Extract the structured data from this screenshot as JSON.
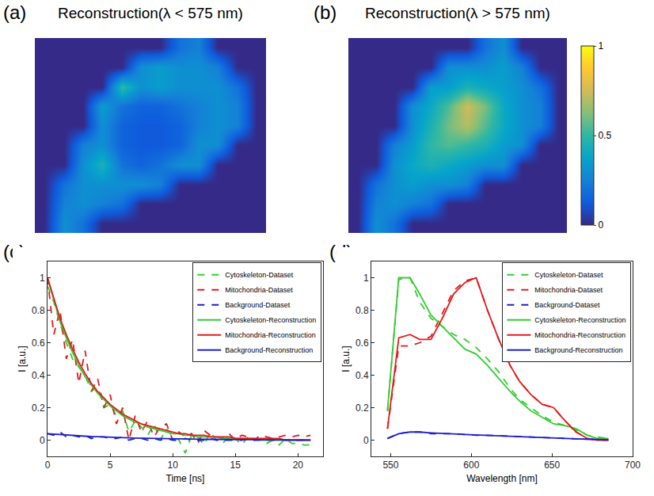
{
  "chart_data": [
    {
      "type": "heatmap",
      "panel": "(a)",
      "title": "Reconstruction(λ < 575 nm)",
      "tick_labels": false,
      "color_range": [
        0,
        1
      ],
      "z": [
        [
          0,
          0,
          0,
          0,
          0,
          0,
          0,
          0.2,
          0.25,
          0,
          0,
          0
        ],
        [
          0,
          0,
          0,
          0,
          0,
          0.3,
          0.35,
          0.3,
          0.3,
          0.25,
          0,
          0
        ],
        [
          0,
          0,
          0,
          0,
          0.5,
          0.3,
          0.35,
          0.3,
          0.3,
          0.3,
          0.2,
          0
        ],
        [
          0,
          0,
          0,
          0.35,
          0.2,
          0.15,
          0.15,
          0.2,
          0.25,
          0.3,
          0.25,
          0
        ],
        [
          0,
          0,
          0,
          0.3,
          0.15,
          0.12,
          0.12,
          0.15,
          0.25,
          0.3,
          0.25,
          0
        ],
        [
          0,
          0,
          0.25,
          0.3,
          0.15,
          0.12,
          0.12,
          0.15,
          0.3,
          0.3,
          0,
          0
        ],
        [
          0,
          0,
          0.3,
          0.45,
          0.2,
          0.15,
          0.2,
          0.3,
          0.3,
          0,
          0,
          0
        ],
        [
          0,
          0.2,
          0.3,
          0.3,
          0.3,
          0.3,
          0.25,
          0,
          0,
          0,
          0,
          0
        ],
        [
          0,
          0.25,
          0.3,
          0.25,
          0.2,
          0,
          0,
          0,
          0,
          0,
          0,
          0
        ],
        [
          0,
          0.3,
          0.2,
          0,
          0,
          0,
          0,
          0,
          0,
          0,
          0,
          0
        ]
      ]
    },
    {
      "type": "heatmap",
      "panel": "(b)",
      "title": "Reconstruction(λ > 575 nm)",
      "tick_labels": false,
      "colorbar": {
        "range": [
          0,
          1
        ],
        "ticks": [
          0,
          0.5,
          1
        ]
      },
      "z": [
        [
          0,
          0,
          0,
          0,
          0,
          0,
          0,
          0.2,
          0.3,
          0,
          0,
          0
        ],
        [
          0,
          0,
          0,
          0,
          0,
          0.3,
          0.3,
          0.3,
          0.35,
          0.25,
          0,
          0
        ],
        [
          0,
          0,
          0,
          0,
          0.35,
          0.35,
          0.45,
          0.4,
          0.35,
          0.3,
          0.2,
          0
        ],
        [
          0,
          0,
          0,
          0.3,
          0.4,
          0.55,
          0.75,
          0.6,
          0.4,
          0.3,
          0.25,
          0
        ],
        [
          0,
          0,
          0,
          0.3,
          0.45,
          0.6,
          0.7,
          0.55,
          0.4,
          0.3,
          0.25,
          0
        ],
        [
          0,
          0,
          0.25,
          0.35,
          0.5,
          0.55,
          0.5,
          0.45,
          0.35,
          0.3,
          0,
          0
        ],
        [
          0,
          0,
          0.3,
          0.4,
          0.45,
          0.4,
          0.35,
          0.3,
          0.3,
          0,
          0,
          0
        ],
        [
          0,
          0.2,
          0.3,
          0.35,
          0.3,
          0.3,
          0.25,
          0,
          0,
          0,
          0,
          0
        ],
        [
          0,
          0.25,
          0.3,
          0.25,
          0.2,
          0,
          0,
          0,
          0,
          0,
          0,
          0
        ],
        [
          0,
          0.3,
          0.2,
          0,
          0,
          0,
          0,
          0,
          0,
          0,
          0,
          0
        ]
      ]
    },
    {
      "type": "line",
      "panel": "(c)",
      "x_label": "Time [ns]",
      "y_label": "I [a.u.]",
      "grid": false,
      "legend": "top right",
      "xlim": [
        0,
        22
      ],
      "xticks": [
        0,
        5,
        10,
        15,
        20
      ],
      "ylim": [
        -0.1,
        1.1
      ],
      "yticks": [
        0,
        0.2,
        0.4,
        0.6,
        0.8,
        1
      ],
      "x": [
        0,
        0.5,
        1,
        1.5,
        2,
        2.5,
        3,
        3.5,
        4,
        4.5,
        5,
        5.5,
        6,
        6.5,
        7,
        7.5,
        8,
        8.5,
        9,
        9.5,
        10,
        10.5,
        11,
        11.5,
        12,
        12.5,
        13,
        13.5,
        14,
        14.5,
        15,
        15.5,
        16,
        16.5,
        17,
        17.5,
        18,
        18.5,
        19,
        19.5,
        20,
        20.5,
        21
      ],
      "series": [
        {
          "name": "Cytoskeleton-Dataset",
          "color": "#33cc33",
          "line_style": "dash",
          "values": [
            0.95,
            0.85,
            0.72,
            0.6,
            0.5,
            0.45,
            0.4,
            0.3,
            0.33,
            0.2,
            0.22,
            0.15,
            0.18,
            0.05,
            0.12,
            0.08,
            0.03,
            0.1,
            0.0,
            0.07,
            0.02,
            0.0,
            -0.08,
            0.03,
            0.02,
            -0.03,
            0.05,
            0.0,
            -0.02,
            0.03,
            0.01,
            -0.03,
            0.02,
            0.0,
            0.01,
            -0.02,
            0.0,
            -0.03,
            0.01,
            -0.02,
            -0.02,
            -0.03,
            -0.03
          ]
        },
        {
          "name": "Mitochondria-Dataset",
          "color": "#e31a1c",
          "line_style": "dash",
          "values": [
            1.0,
            0.65,
            0.8,
            0.5,
            0.62,
            0.35,
            0.55,
            0.3,
            0.38,
            0.2,
            0.28,
            0.1,
            0.2,
            0.0,
            0.15,
            0.05,
            0.12,
            0.02,
            0.08,
            0.1,
            0.0,
            0.05,
            0.02,
            0.04,
            -0.02,
            0.06,
            0.03,
            0.02,
            0.01,
            0.04,
            0.0,
            0.03,
            0.02,
            0.0,
            0.03,
            0.02,
            0.01,
            0.02,
            0.03,
            0.02,
            0.03,
            0.02,
            0.03
          ]
        },
        {
          "name": "Background-Dataset",
          "color": "#1f1fcc",
          "line_style": "dash",
          "values": [
            0.04,
            0.03,
            0.05,
            0.02,
            0.03,
            0.02,
            0.03,
            0.01,
            0.02,
            0.02,
            0.01,
            0.01,
            0.02,
            0.0,
            0.01,
            0.01,
            0.0,
            0.01,
            0.0,
            0.01,
            0.0,
            0.0,
            0.01,
            0.0,
            0.0,
            0.0,
            0.01,
            0.0,
            0.0,
            0.0,
            0.0,
            0.0,
            0.01,
            0.0,
            0.0,
            0.0,
            0.0,
            0.0,
            0.0,
            0.0,
            0.0,
            0.0,
            0.0
          ]
        },
        {
          "name": "Cytoskeleton-Reconstruction",
          "color": "#33cc33",
          "line_style": "solid",
          "values": [
            1.0,
            0.86,
            0.73,
            0.63,
            0.54,
            0.46,
            0.39,
            0.34,
            0.29,
            0.25,
            0.21,
            0.18,
            0.15,
            0.13,
            0.11,
            0.1,
            0.08,
            0.07,
            0.06,
            0.05,
            0.04,
            0.04,
            0.03,
            0.03,
            0.02,
            0.02,
            0.02,
            0.02,
            0.01,
            0.01,
            0.01,
            0.01,
            0.01,
            0.01,
            0.0,
            0.0,
            0.0,
            0.0,
            0.0,
            0.0,
            0.0,
            0.0,
            0.0
          ]
        },
        {
          "name": "Mitochondria-Reconstruction",
          "color": "#e31a1c",
          "line_style": "solid",
          "values": [
            1.0,
            0.87,
            0.75,
            0.65,
            0.56,
            0.48,
            0.41,
            0.35,
            0.3,
            0.26,
            0.22,
            0.19,
            0.16,
            0.14,
            0.12,
            0.1,
            0.09,
            0.08,
            0.07,
            0.06,
            0.05,
            0.04,
            0.04,
            0.03,
            0.03,
            0.03,
            0.02,
            0.02,
            0.02,
            0.02,
            0.01,
            0.01,
            0.01,
            0.01,
            0.01,
            0.01,
            0.01,
            0.01,
            0.0,
            0.0,
            0.0,
            0.0,
            0.0
          ]
        },
        {
          "name": "Background-Reconstruction",
          "color": "#1f1fcc",
          "line_style": "solid",
          "values": [
            0.04,
            0.037,
            0.034,
            0.031,
            0.029,
            0.026,
            0.024,
            0.022,
            0.021,
            0.019,
            0.017,
            0.016,
            0.015,
            0.014,
            0.013,
            0.012,
            0.011,
            0.01,
            0.009,
            0.008,
            0.008,
            0.007,
            0.006,
            0.006,
            0.005,
            0.005,
            0.005,
            0.004,
            0.004,
            0.004,
            0.003,
            0.003,
            0.003,
            0.003,
            0.002,
            0.002,
            0.002,
            0.002,
            0.002,
            0.002,
            0.001,
            0.001,
            0.001
          ]
        }
      ]
    },
    {
      "type": "line",
      "panel": "(d)",
      "x_label": "Wavelength [nm]",
      "y_label": "I [a.u.]",
      "grid": false,
      "legend": "top right",
      "xlim": [
        538,
        700
      ],
      "xticks": [
        550,
        600,
        650,
        700
      ],
      "ylim": [
        -0.1,
        1.1
      ],
      "yticks": [
        0,
        0.2,
        0.4,
        0.6,
        0.8,
        1
      ],
      "x": [
        548,
        555,
        562,
        568,
        575,
        582,
        589,
        596,
        603,
        610,
        617,
        624,
        630,
        637,
        644,
        651,
        658,
        665,
        672,
        678,
        685
      ],
      "series": [
        {
          "name": "Cytoskeleton-Dataset",
          "color": "#33cc33",
          "line_style": "dash",
          "values": [
            0.18,
            0.99,
            1.0,
            0.85,
            0.75,
            0.7,
            0.65,
            0.62,
            0.57,
            0.5,
            0.42,
            0.32,
            0.25,
            0.2,
            0.15,
            0.11,
            0.09,
            0.06,
            0.03,
            0.02,
            0.01
          ]
        },
        {
          "name": "Mitochondria-Dataset",
          "color": "#e31a1c",
          "line_style": "dash",
          "values": [
            0.07,
            0.58,
            0.58,
            0.6,
            0.64,
            0.78,
            0.92,
            0.98,
            1.0,
            0.8,
            0.62,
            0.46,
            0.36,
            0.28,
            0.22,
            0.2,
            0.12,
            0.05,
            0.01,
            0.0,
            0.0
          ]
        },
        {
          "name": "Background-Dataset",
          "color": "#1f1fcc",
          "line_style": "dash",
          "values": [
            0.01,
            0.04,
            0.05,
            0.05,
            0.04,
            0.04,
            0.04,
            0.035,
            0.03,
            0.03,
            0.027,
            0.024,
            0.02,
            0.018,
            0.015,
            0.012,
            0.01,
            0.008,
            0.006,
            0.004,
            0.003
          ]
        },
        {
          "name": "Cytoskeleton-Reconstruction",
          "color": "#33cc33",
          "line_style": "solid",
          "values": [
            0.18,
            1.0,
            1.0,
            0.9,
            0.77,
            0.7,
            0.63,
            0.56,
            0.53,
            0.46,
            0.38,
            0.3,
            0.24,
            0.18,
            0.14,
            0.1,
            0.09,
            0.07,
            0.03,
            0.01,
            0.01
          ]
        },
        {
          "name": "Mitochondria-Reconstruction",
          "color": "#e31a1c",
          "line_style": "solid",
          "values": [
            0.07,
            0.63,
            0.65,
            0.62,
            0.62,
            0.75,
            0.9,
            0.97,
            1.0,
            0.8,
            0.62,
            0.46,
            0.36,
            0.28,
            0.22,
            0.2,
            0.12,
            0.05,
            0.01,
            0.0,
            0.0
          ]
        },
        {
          "name": "Background-Reconstruction",
          "color": "#1f1fcc",
          "line_style": "solid",
          "values": [
            0.01,
            0.04,
            0.05,
            0.05,
            0.045,
            0.04,
            0.038,
            0.035,
            0.032,
            0.03,
            0.027,
            0.024,
            0.02,
            0.018,
            0.015,
            0.012,
            0.01,
            0.008,
            0.006,
            0.004,
            0.003
          ]
        }
      ]
    }
  ]
}
